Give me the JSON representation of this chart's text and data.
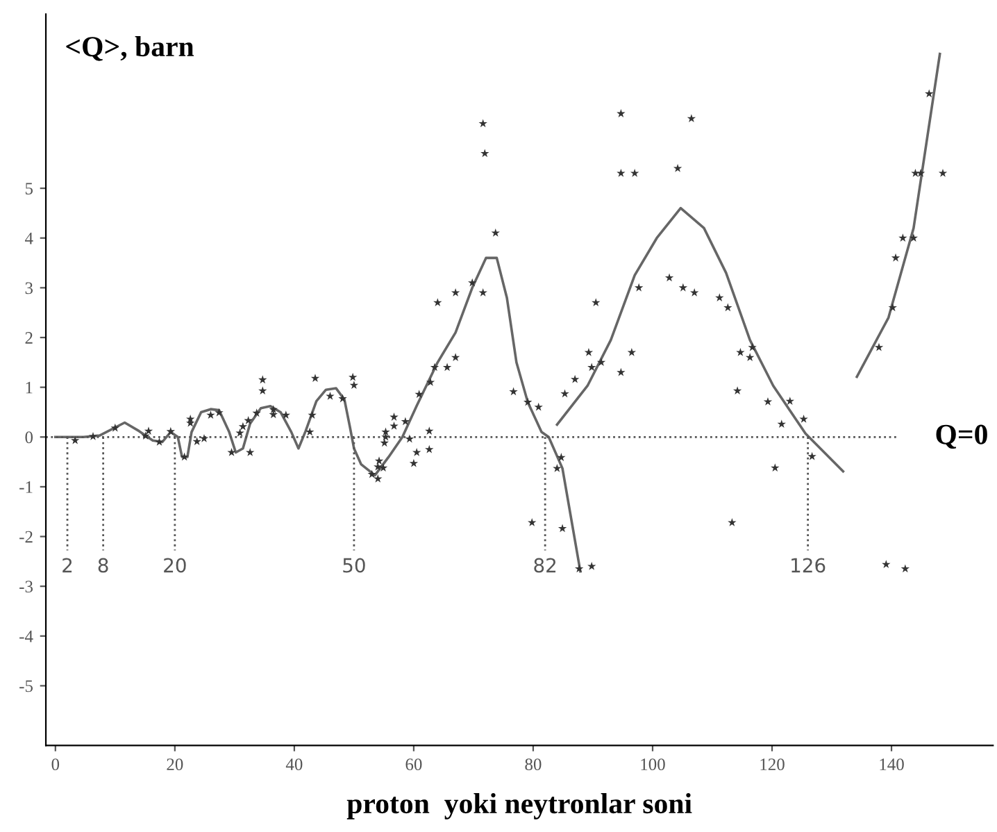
{
  "chart_data": {
    "type": "scatter",
    "xlabel": "proton  yoki neytronlar soni",
    "ylabel": "<Q>, barn",
    "xlim": [
      -1.6,
      157
    ],
    "xticks": [
      0,
      20,
      40,
      60,
      80,
      100,
      120,
      140
    ],
    "ylim": [
      -6.2,
      8.5
    ],
    "yticks": [
      -5,
      -4,
      -3,
      -2,
      -1,
      0,
      1,
      2,
      3,
      4,
      5
    ],
    "grid": false,
    "series": [
      {
        "color": "#333333",
        "marker": "star",
        "x": [
          71.6,
          71.9,
          73.7,
          69.8,
          71.6,
          67.0,
          64.0,
          67.0,
          65.6,
          63.5,
          62.8,
          60.9,
          56.7,
          58.6,
          56.7,
          55.3,
          55.3,
          62.6,
          59.3,
          55.1,
          62.6,
          60.5,
          34.7,
          34.7,
          43.5,
          49.8,
          50.0,
          46.0,
          48.1,
          33.7,
          36.5,
          36.5,
          38.6,
          43.0,
          42.6,
          32.3,
          31.4,
          30.9,
          27.4,
          26.0,
          22.6,
          22.6,
          15.6,
          15.1,
          17.4,
          19.3,
          23.7,
          24.9,
          3.3,
          6.3,
          10.0,
          32.6,
          21.6,
          29.5,
          54.2,
          54.0,
          54.0,
          53.0,
          54.9,
          60.0,
          76.7,
          79.1,
          80.9,
          94.7,
          94.7,
          97.0,
          106.5,
          104.2,
          97.7,
          102.8,
          105.1,
          107.0,
          111.2,
          112.6,
          90.5,
          89.3,
          96.5,
          89.8,
          91.4,
          94.7,
          87.0,
          85.3,
          114.7,
          116.7,
          116.3,
          114.2,
          119.3,
          123.0,
          125.3,
          121.6,
          137.9,
          140.2,
          140.7,
          141.9,
          143.7,
          144.0,
          144.9,
          146.3,
          148.6,
          126.7,
          120.5,
          84.0,
          84.7,
          79.8,
          84.9,
          87.7,
          89.8,
          113.3,
          139.1,
          142.3
        ],
        "values": [
          6.3,
          5.7,
          4.1,
          3.1,
          2.9,
          2.9,
          2.7,
          1.6,
          1.4,
          1.4,
          1.1,
          0.86,
          0.4,
          0.31,
          0.22,
          0.1,
          0,
          0.12,
          -0.04,
          -0.12,
          -0.25,
          -0.31,
          1.15,
          0.93,
          1.18,
          1.2,
          1.04,
          0.82,
          0.77,
          0.48,
          0.55,
          0.45,
          0.44,
          0.44,
          0.1,
          0.33,
          0.21,
          0.08,
          0.49,
          0.44,
          0.36,
          0.28,
          0.12,
          0.02,
          -0.1,
          0.11,
          -0.09,
          -0.03,
          -0.07,
          0.01,
          0.18,
          -0.31,
          -0.4,
          -0.31,
          -0.48,
          -0.6,
          -0.84,
          -0.75,
          -0.62,
          -0.53,
          0.91,
          0.7,
          0.6,
          6.5,
          5.3,
          5.3,
          6.4,
          5.4,
          3.0,
          3.2,
          3.0,
          2.9,
          2.8,
          2.6,
          2.7,
          1.7,
          1.7,
          1.4,
          1.5,
          1.3,
          1.16,
          0.87,
          1.7,
          1.8,
          1.6,
          0.93,
          0.71,
          0.72,
          0.36,
          0.26,
          1.8,
          2.6,
          3.6,
          4.0,
          4.0,
          5.3,
          5.3,
          6.9,
          5.3,
          -0.39,
          -0.62,
          -0.63,
          -0.41,
          -1.72,
          -1.84,
          -2.65,
          -2.6,
          -1.72,
          -2.56,
          -2.65
        ]
      },
      {
        "type": "line",
        "color": "#666666",
        "marker": "none",
        "x": [
          0,
          4.7,
          7.4,
          11.6,
          14.0,
          16.3,
          17.9,
          19.3,
          20.5,
          21.2,
          22.1,
          22.8,
          24.4,
          26.0,
          27.4,
          29.1,
          30.2,
          31.4,
          32.6,
          34.4,
          36.0,
          37.7,
          39.5,
          40.7,
          41.9,
          43.7,
          45.3,
          47.0,
          48.4,
          49.3,
          50.0,
          51.2,
          53.5,
          55.8,
          58.1,
          60.5,
          64.0,
          67.0,
          69.8,
          72.1,
          73.9,
          75.6,
          77.2,
          79.1,
          81.4,
          82.6,
          84.9,
          87.9
        ],
        "values": [
          0,
          0,
          0.03,
          0.29,
          0.12,
          -0.07,
          -0.1,
          0.1,
          0,
          -0.4,
          -0.4,
          0.1,
          0.5,
          0.56,
          0.54,
          0.1,
          -0.31,
          -0.23,
          0.27,
          0.58,
          0.62,
          0.5,
          0.1,
          -0.23,
          0.12,
          0.72,
          0.95,
          0.98,
          0.75,
          0.21,
          -0.23,
          -0.55,
          -0.77,
          -0.4,
          0,
          0.63,
          1.5,
          2.1,
          3.0,
          3.6,
          3.6,
          2.8,
          1.5,
          0.7,
          0.1,
          0,
          -0.63,
          -2.7
        ]
      },
      {
        "type": "line",
        "color": "#666666",
        "marker": "none",
        "x": [
          84.0,
          89.1,
          93.0,
          97.0,
          100.7,
          104.7,
          108.6,
          112.3,
          116.3,
          120.2,
          125.6,
          131.9
        ],
        "values": [
          0.25,
          1.03,
          1.95,
          3.25,
          4.0,
          4.6,
          4.2,
          3.3,
          1.95,
          1.03,
          0.07,
          -0.69
        ]
      },
      {
        "type": "line",
        "color": "#666666",
        "marker": "none",
        "x": [
          134.2,
          139.5,
          143.7,
          148.1
        ],
        "values": [
          1.21,
          2.4,
          4.2,
          7.7
        ]
      }
    ],
    "ref_lines": [
      {
        "axis": "y",
        "value": 0,
        "label": "Q=0",
        "line_style": "dotted",
        "color": "#555555"
      },
      {
        "axis": "x",
        "value": 2,
        "label": "2",
        "line_style": "dotted",
        "color": "#555555"
      },
      {
        "axis": "x",
        "value": 8,
        "label": "8",
        "line_style": "dotted",
        "color": "#555555"
      },
      {
        "axis": "x",
        "value": 20,
        "label": "20",
        "line_style": "dotted",
        "color": "#555555"
      },
      {
        "axis": "x",
        "value": 50,
        "label": "50",
        "line_style": "dotted",
        "color": "#555555"
      },
      {
        "axis": "x",
        "value": 82,
        "label": "82",
        "line_style": "dotted",
        "color": "#555555"
      },
      {
        "axis": "x",
        "value": 126,
        "label": "126",
        "line_style": "dotted",
        "color": "#555555"
      }
    ]
  }
}
